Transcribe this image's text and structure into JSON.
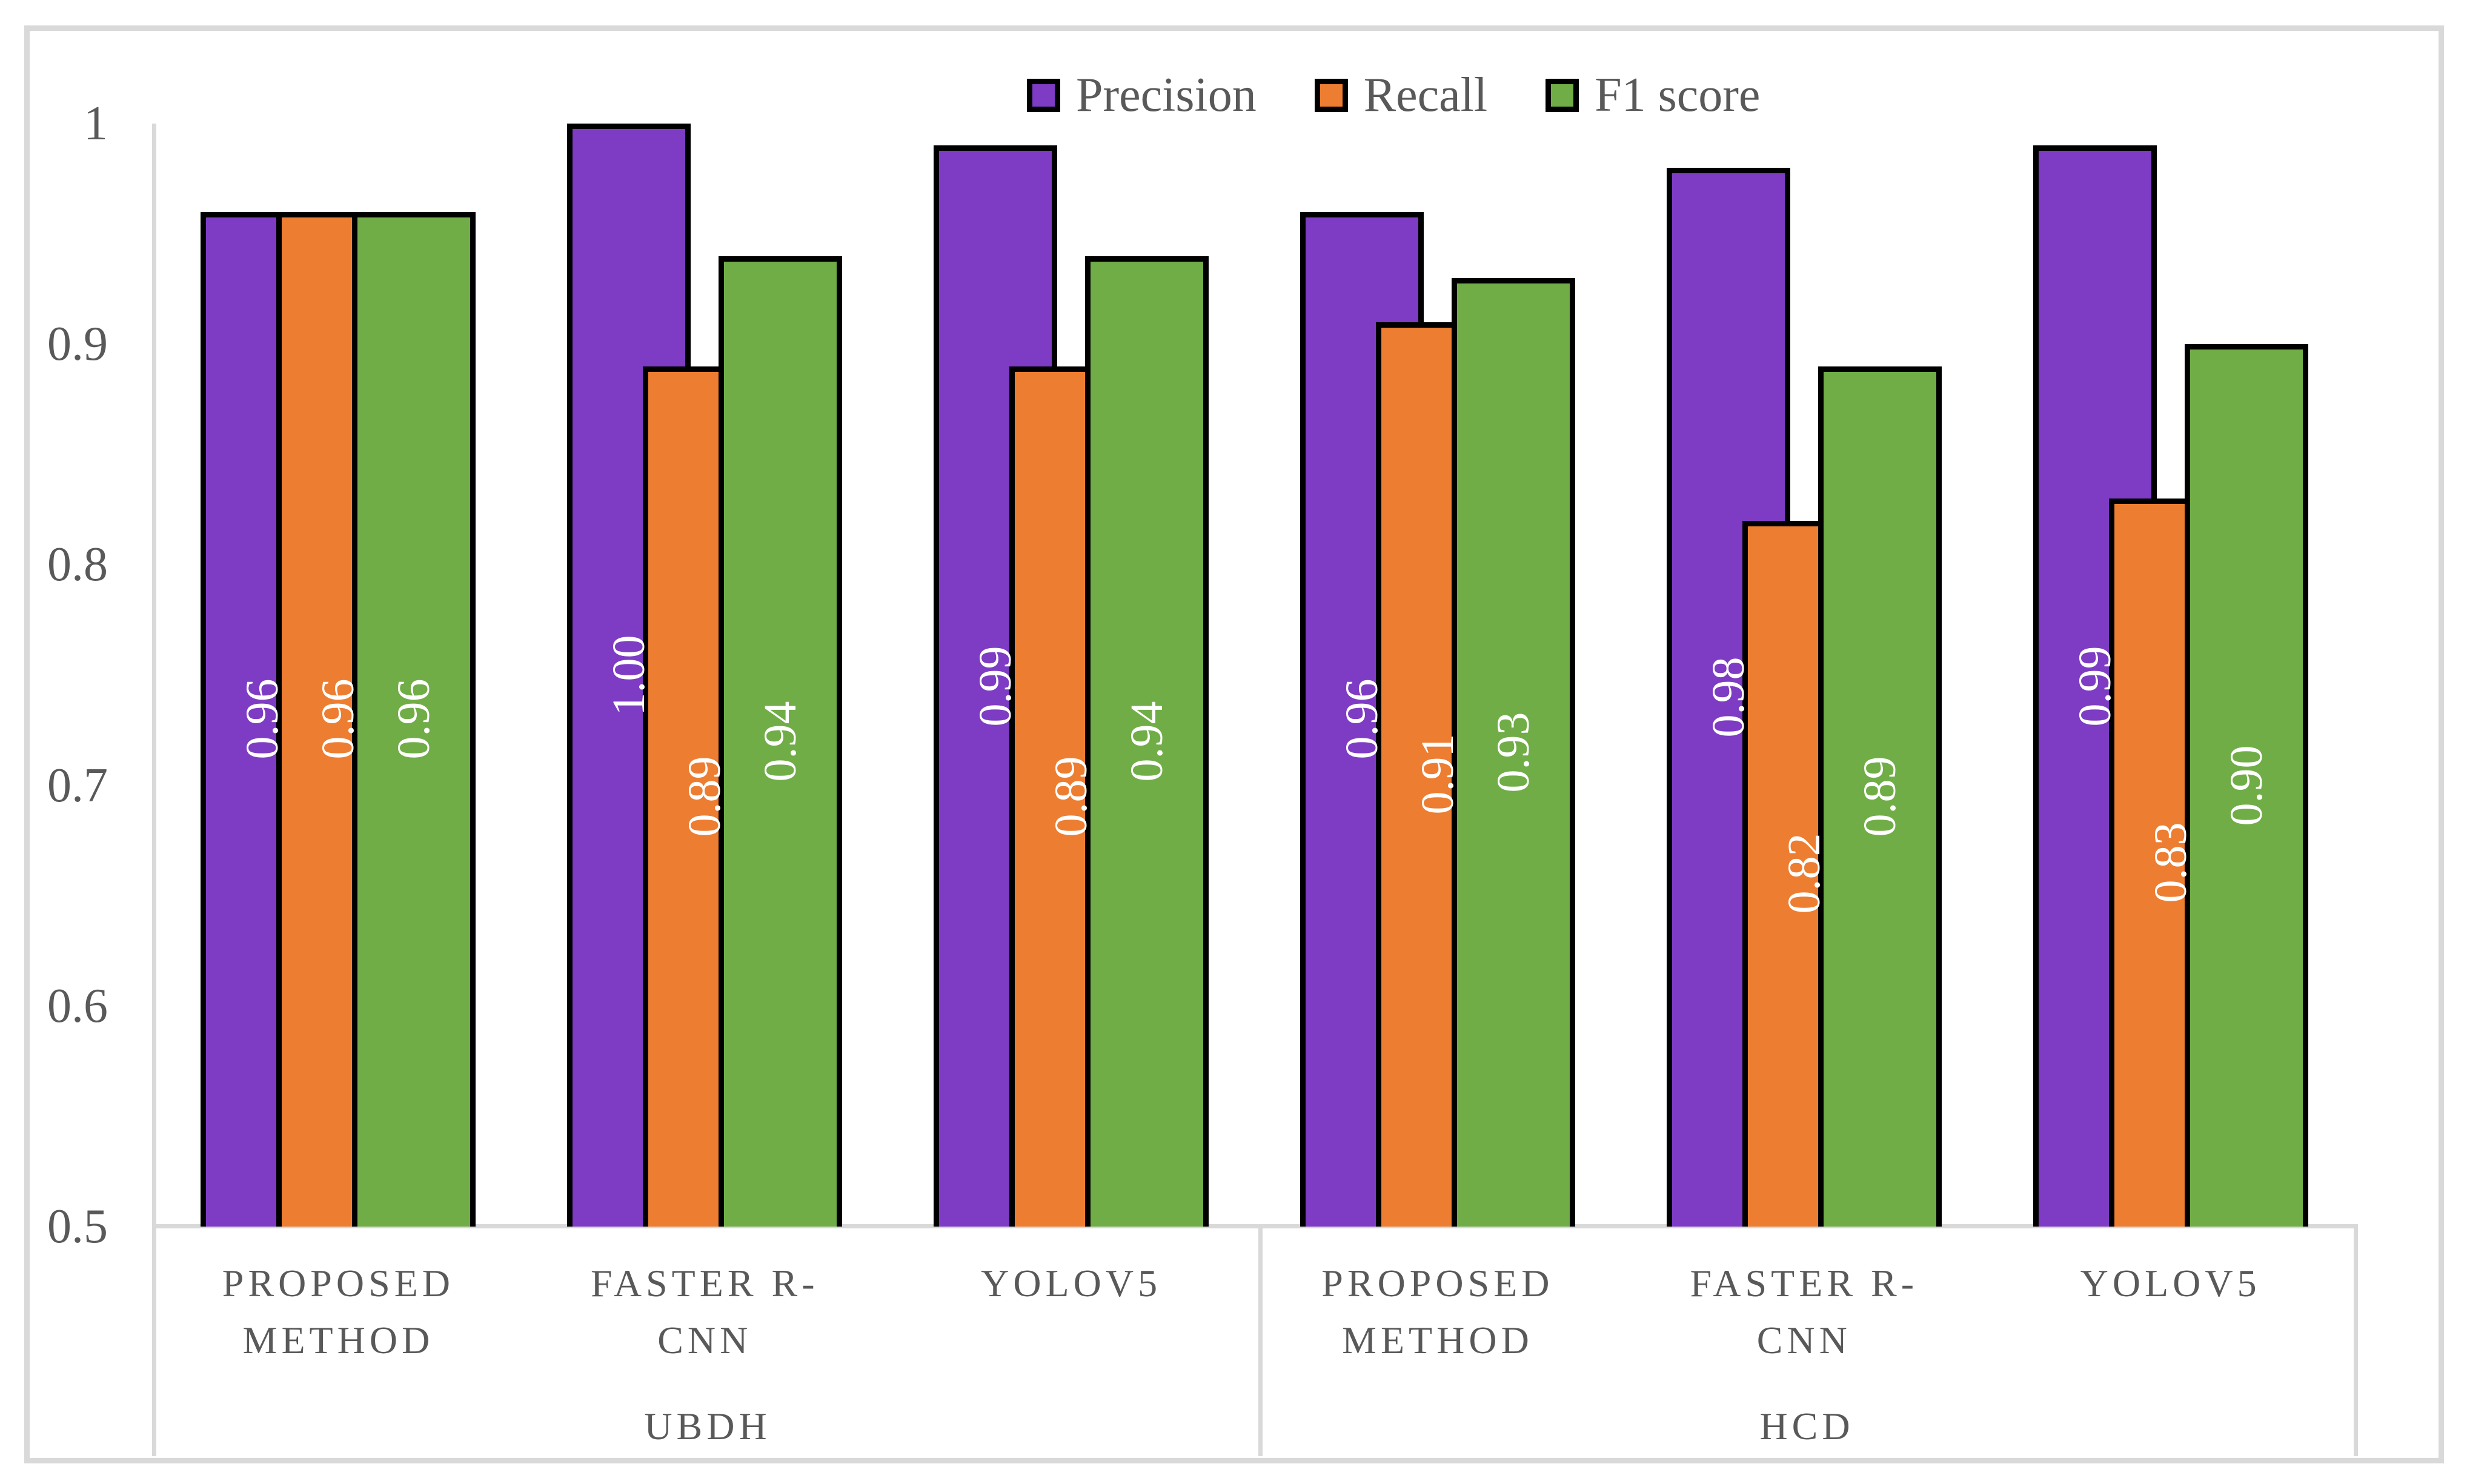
{
  "legend": {
    "items": [
      {
        "label": "Precision",
        "color": "#7D3CC3"
      },
      {
        "label": "Recall",
        "color": "#ED7D31"
      },
      {
        "label": "F1 score",
        "color": "#70AD47"
      }
    ]
  },
  "axis": {
    "tick_labels": [
      "1",
      "0.9",
      "0.8",
      "0.7",
      "0.6",
      "0.5"
    ],
    "tick_values": [
      1,
      0.9,
      0.8,
      0.7,
      0.6,
      0.5
    ]
  },
  "chart_data": {
    "type": "bar",
    "title": "",
    "xlabel": "",
    "ylabel": "",
    "ylim": [
      0.5,
      1
    ],
    "yticks": [
      1,
      0.9,
      0.8,
      0.7,
      0.6,
      0.5
    ],
    "grid": false,
    "legend_position": "top-center",
    "group_labels": [
      "UBDH",
      "HCD"
    ],
    "categories": [
      [
        "PROPOSED",
        "METHOD"
      ],
      [
        "FASTER R-",
        "CNN"
      ],
      [
        "YOLOV5"
      ],
      [
        "PROPOSED",
        "METHOD"
      ],
      [
        "FASTER R-",
        "CNN"
      ],
      [
        "YOLOV5"
      ]
    ],
    "category_group_index": [
      0,
      0,
      0,
      1,
      1,
      1
    ],
    "series": [
      {
        "name": "Precision",
        "color": "#7D3CC3",
        "values": [
          0.96,
          1.0,
          0.99,
          0.96,
          0.98,
          0.99
        ],
        "labels": [
          "0.96",
          "1.00",
          "0.99",
          "0.96",
          "0.98",
          "0.99"
        ]
      },
      {
        "name": "Recall",
        "color": "#ED7D31",
        "values": [
          0.96,
          0.89,
          0.89,
          0.91,
          0.82,
          0.83
        ],
        "labels": [
          "0.96",
          "0.89",
          "0.89",
          "0.91",
          "0.82",
          "0.83"
        ]
      },
      {
        "name": "F1 score",
        "color": "#70AD47",
        "values": [
          0.96,
          0.94,
          0.94,
          0.93,
          0.89,
          0.9
        ],
        "labels": [
          "0.96",
          "0.94",
          "0.94",
          "0.93",
          "0.89",
          "0.90"
        ]
      }
    ],
    "bar_label_color": "#FFFFFF",
    "bar_border_color": "#000000"
  },
  "colors": {
    "text": "#595959",
    "line": "#D9D9D9"
  }
}
